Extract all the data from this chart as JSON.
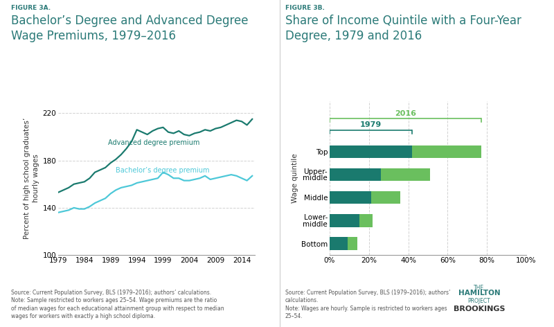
{
  "fig3a_title_small": "FIGURE 3A.",
  "fig3a_title": "Bachelor’s Degree and Advanced Degree\nWage Premiums, 1979–2016",
  "fig3a_ylabel": "Percent of high school graduates’\nhourly wages",
  "fig3a_ylim": [
    100,
    230
  ],
  "fig3a_yticks": [
    100,
    140,
    180,
    220
  ],
  "fig3a_xticks": [
    1979,
    1984,
    1989,
    1994,
    1999,
    2004,
    2009,
    2014
  ],
  "fig3a_source": "Source: Current Population Survey, BLS (1979–2016); authors’ calculations.\nNote: Sample restricted to workers ages 25–54. Wage premiums are the ratio\nof median wages for each educational attainment group with respect to median\nwages for workers with exactly a high school diploma.",
  "advanced_years": [
    1979,
    1980,
    1981,
    1982,
    1983,
    1984,
    1985,
    1986,
    1987,
    1988,
    1989,
    1990,
    1991,
    1992,
    1993,
    1994,
    1995,
    1996,
    1997,
    1998,
    1999,
    2000,
    2001,
    2002,
    2003,
    2004,
    2005,
    2006,
    2007,
    2008,
    2009,
    2010,
    2011,
    2012,
    2013,
    2014,
    2015,
    2016
  ],
  "advanced_values": [
    153,
    155,
    157,
    160,
    161,
    162,
    165,
    170,
    172,
    174,
    178,
    181,
    185,
    190,
    196,
    206,
    204,
    202,
    205,
    207,
    208,
    204,
    203,
    205,
    202,
    201,
    203,
    204,
    206,
    205,
    207,
    208,
    210,
    212,
    214,
    213,
    210,
    215
  ],
  "bachelor_years": [
    1979,
    1980,
    1981,
    1982,
    1983,
    1984,
    1985,
    1986,
    1987,
    1988,
    1989,
    1990,
    1991,
    1992,
    1993,
    1994,
    1995,
    1996,
    1997,
    1998,
    1999,
    2000,
    2001,
    2002,
    2003,
    2004,
    2005,
    2006,
    2007,
    2008,
    2009,
    2010,
    2011,
    2012,
    2013,
    2014,
    2015,
    2016
  ],
  "bachelor_values": [
    136,
    137,
    138,
    140,
    139,
    139,
    141,
    144,
    146,
    148,
    152,
    155,
    157,
    158,
    159,
    161,
    162,
    163,
    164,
    165,
    170,
    168,
    165,
    165,
    163,
    163,
    164,
    165,
    167,
    164,
    165,
    166,
    167,
    168,
    167,
    165,
    163,
    167
  ],
  "advanced_color": "#1a7a6e",
  "bachelor_color": "#4dc8d8",
  "advanced_label": "Advanced degree premium",
  "bachelor_label": "Bachelor’s degree premium",
  "fig3b_title_small": "FIGURE 3B.",
  "fig3b_title": "Share of Income Quintile with a Four-Year\nDegree, 1979 and 2016",
  "fig3b_source": "Source: Current Population Survey, BLS (1979–2016); authors’\ncalculations.\nNote: Wages are hourly. Sample is restricted to workers ages\n25–54.",
  "quintiles": [
    "Top",
    "Upper-\nmiddle",
    "Middle",
    "Lower-\nmiddle",
    "Bottom"
  ],
  "values_1979": [
    0.42,
    0.26,
    0.21,
    0.15,
    0.09
  ],
  "values_2016": [
    0.77,
    0.51,
    0.36,
    0.22,
    0.14
  ],
  "color_1979": "#1a7a6e",
  "color_2016": "#6abf5e",
  "label_1979": "1979",
  "label_2016": "2016",
  "bg_color": "#ffffff",
  "title_color": "#2b7a78",
  "small_title_color": "#2b7a78",
  "grid_color": "#cccccc",
  "text_color": "#333333",
  "source_color": "#555555"
}
